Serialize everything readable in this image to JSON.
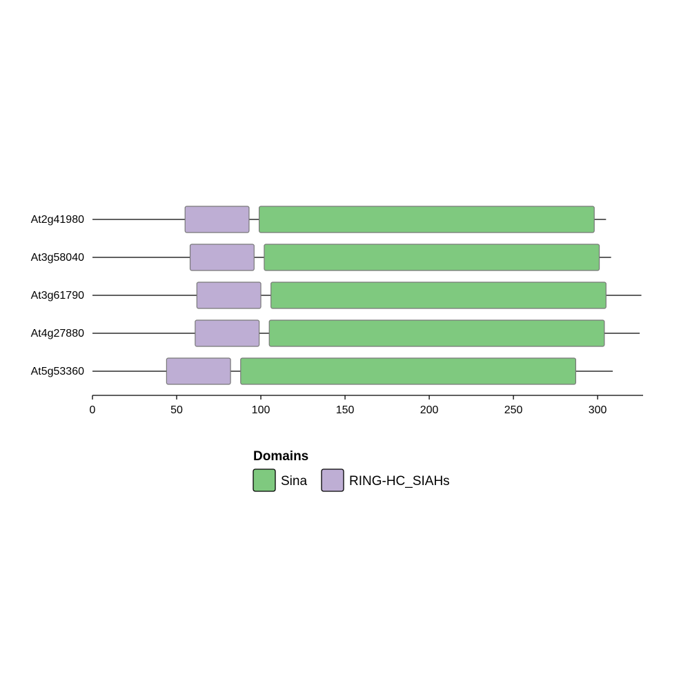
{
  "chart_data": {
    "type": "domain-architecture",
    "xlim": [
      0,
      327
    ],
    "ticks": [
      0,
      50,
      100,
      150,
      200,
      250,
      300
    ],
    "domain_types": [
      {
        "name": "Sina",
        "color": "#7fc97f"
      },
      {
        "name": "RING-HC_SIAHs",
        "color": "#beaed4"
      }
    ],
    "proteins": [
      {
        "name": "At2g41980",
        "length": 305,
        "domains": [
          {
            "type": "RING-HC_SIAHs",
            "start": 55,
            "end": 93
          },
          {
            "type": "Sina",
            "start": 99,
            "end": 298
          }
        ]
      },
      {
        "name": "At3g58040",
        "length": 308,
        "domains": [
          {
            "type": "RING-HC_SIAHs",
            "start": 58,
            "end": 96
          },
          {
            "type": "Sina",
            "start": 102,
            "end": 301
          }
        ]
      },
      {
        "name": "At3g61790",
        "length": 326,
        "domains": [
          {
            "type": "RING-HC_SIAHs",
            "start": 62,
            "end": 100
          },
          {
            "type": "Sina",
            "start": 106,
            "end": 305
          }
        ]
      },
      {
        "name": "At4g27880",
        "length": 325,
        "domains": [
          {
            "type": "RING-HC_SIAHs",
            "start": 61,
            "end": 99
          },
          {
            "type": "Sina",
            "start": 105,
            "end": 304
          }
        ]
      },
      {
        "name": "At5g53360",
        "length": 309,
        "domains": [
          {
            "type": "RING-HC_SIAHs",
            "start": 44,
            "end": 82
          },
          {
            "type": "Sina",
            "start": 88,
            "end": 287
          }
        ]
      }
    ],
    "legend": {
      "title": "Domains",
      "position": "bottom-center"
    }
  }
}
